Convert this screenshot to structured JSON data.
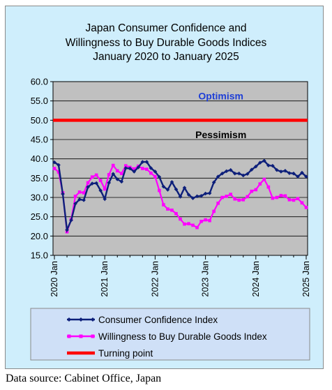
{
  "chart_data": {
    "type": "line",
    "title_lines": [
      "Japan Consumer Confidence and",
      "Willingness to Buy Durable Goods Indices",
      "January 2020 to January 2025"
    ],
    "ylim": [
      15,
      60
    ],
    "yticks": [
      "15.0",
      "20.0",
      "25.0",
      "30.0",
      "35.0",
      "40.0",
      "45.0",
      "50.0",
      "55.0",
      "60.0"
    ],
    "xlim": [
      0,
      60
    ],
    "xticks": [
      {
        "label": "2020 Jan",
        "month": 0
      },
      {
        "label": "2021 Jan",
        "month": 12
      },
      {
        "label": "2022 Jan",
        "month": 24
      },
      {
        "label": "2023 Jan",
        "month": 36
      },
      {
        "label": "2024 Jan",
        "month": 48
      },
      {
        "label": "2025 Jan",
        "month": 60
      }
    ],
    "annotations": [
      {
        "text": "Optimism",
        "month": 42,
        "y": 56.3,
        "color": "#1f3fd6"
      },
      {
        "text": "Pessimism",
        "month": 42,
        "y": 46.3,
        "color": "#000000"
      }
    ],
    "series": [
      {
        "name": "Consumer Confidence Index",
        "color": "#0d1f7a",
        "values": [
          39.1,
          38.4,
          30.9,
          21.6,
          24.1,
          28.4,
          29.5,
          29.3,
          32.7,
          33.6,
          33.7,
          31.8,
          29.6,
          33.8,
          36.1,
          34.7,
          34.1,
          37.6,
          37.5,
          36.7,
          37.8,
          39.2,
          39.2,
          37.6,
          36.7,
          35.3,
          32.8,
          32.0,
          34.0,
          32.1,
          30.2,
          32.5,
          30.7,
          29.8,
          30.3,
          30.4,
          31.0,
          31.1,
          33.9,
          35.4,
          36.2,
          36.8,
          37.1,
          36.2,
          36.2,
          35.7,
          36.1,
          37.2,
          38.0,
          39.0,
          39.5,
          38.3,
          38.2,
          37.1,
          36.7,
          36.9,
          36.3,
          36.2,
          35.4,
          36.4,
          35.4
        ]
      },
      {
        "name": "Willingness to Buy Durable Goods Index",
        "color": "#ff00ff",
        "values": [
          37.5,
          36.6,
          31.2,
          21.1,
          24.3,
          30.3,
          31.4,
          31.2,
          33.8,
          35.3,
          35.8,
          34.4,
          32.2,
          35.9,
          38.3,
          36.9,
          36.2,
          38.2,
          37.8,
          37.4,
          38.1,
          37.5,
          37.3,
          36.3,
          35.4,
          31.8,
          28.1,
          27.0,
          26.7,
          25.8,
          24.4,
          23.1,
          23.2,
          22.8,
          22.2,
          23.8,
          24.2,
          24.0,
          26.4,
          28.5,
          30.0,
          30.3,
          30.8,
          29.6,
          29.3,
          29.4,
          30.2,
          31.6,
          32.0,
          33.5,
          34.7,
          32.7,
          29.8,
          30.0,
          30.5,
          30.4,
          29.4,
          29.3,
          29.7,
          28.6,
          27.4
        ]
      },
      {
        "name": "Turning point",
        "color": "#ff0000",
        "values": [
          50,
          50
        ]
      }
    ],
    "grid": "horizontal",
    "legend": "bottom"
  },
  "source_text": "Data source: Cabinet Office, Japan"
}
